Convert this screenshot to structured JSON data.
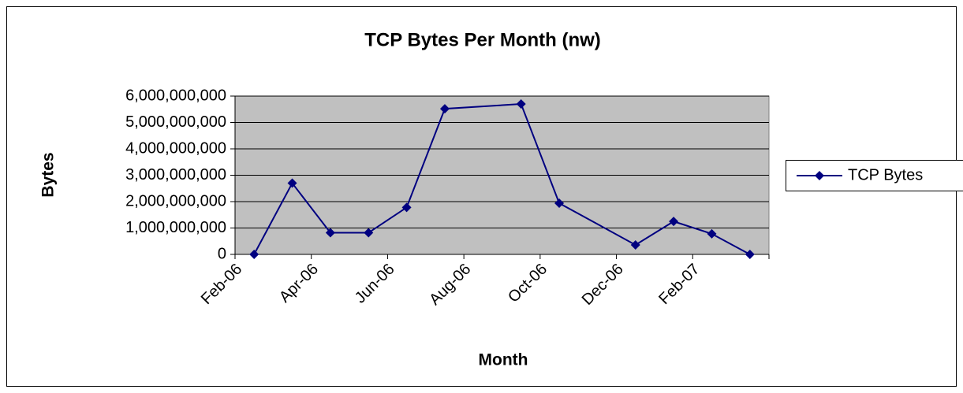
{
  "chart_data": {
    "type": "line",
    "title": "TCP Bytes Per Month (nw)",
    "x_label": "Month",
    "y_label": "Bytes",
    "x": [
      "2006-02",
      "2006-03",
      "2006-04",
      "2006-05",
      "2006-06",
      "2006-07",
      "2006-09",
      "2006-10",
      "2006-12",
      "2007-01",
      "2007-02",
      "2007-03"
    ],
    "series": [
      {
        "name": "TCP Bytes",
        "color": "#000080",
        "values": [
          0,
          2700000000,
          820000000,
          820000000,
          1780000000,
          5520000000,
          5700000000,
          1940000000,
          360000000,
          1250000000,
          780000000,
          0
        ]
      }
    ],
    "xlim": [
      "2006-02",
      "2007-04"
    ],
    "xticks": [
      {
        "value": "2006-02",
        "label": "Feb-06"
      },
      {
        "value": "2006-04",
        "label": "Apr-06"
      },
      {
        "value": "2006-06",
        "label": "Jun-06"
      },
      {
        "value": "2006-08",
        "label": "Aug-06"
      },
      {
        "value": "2006-10",
        "label": "Oct-06"
      },
      {
        "value": "2006-12",
        "label": "Dec-06"
      },
      {
        "value": "2007-02",
        "label": "Feb-07"
      }
    ],
    "ylim": [
      0,
      6000000000
    ],
    "yticks": [
      0,
      {
        "value": 1000000000,
        "label": "1,000,000,000"
      },
      {
        "value": 2000000000,
        "label": "2,000,000,000"
      },
      {
        "value": 3000000000,
        "label": "3,000,000,000"
      },
      {
        "value": 4000000000,
        "label": "4,000,000,000"
      },
      {
        "value": 5000000000,
        "label": "5,000,000,000"
      },
      {
        "value": 6000000000,
        "label": "6,000,000,000"
      }
    ],
    "grid": true,
    "legend": "right",
    "plot_background": "#c0c0c0"
  }
}
